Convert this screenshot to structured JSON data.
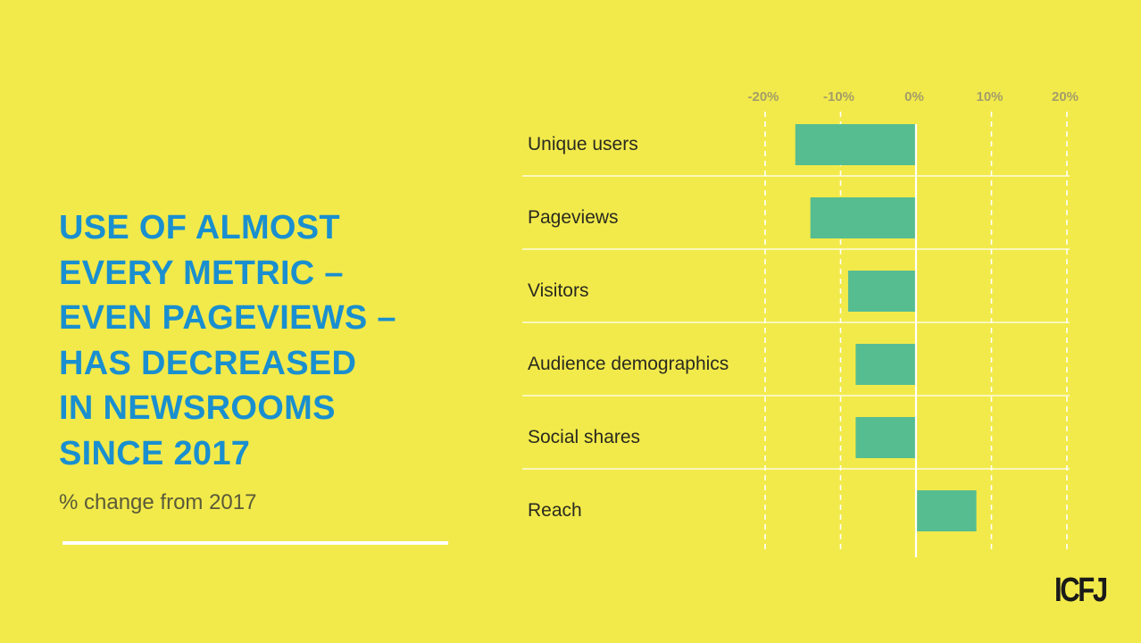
{
  "headline": {
    "lines": [
      "USE OF ALMOST",
      "EVERY METRIC –",
      "EVEN PAGEVIEWS –",
      "HAS DECREASED",
      "IN NEWSROOMS",
      "SINCE 2017"
    ]
  },
  "subtitle": "% change from 2017",
  "logo": "ICFJ",
  "colors": {
    "background": "#f2ea4a",
    "headline": "#1a8fcf",
    "bar": "#56bd91",
    "gridline": "#ffffff",
    "tick_label": "#a39d6a"
  },
  "chart_data": {
    "type": "bar",
    "orientation": "horizontal",
    "categories": [
      "Unique users",
      "Pageviews",
      "Visitors",
      "Audience demographics",
      "Social shares",
      "Reach"
    ],
    "values": [
      -16,
      -14,
      -9,
      -8,
      -8,
      8
    ],
    "x_ticks": [
      "-20%",
      "-10%",
      "0%",
      "10%",
      "20%"
    ],
    "x_tick_values": [
      -20,
      -10,
      0,
      10,
      20
    ],
    "xlim": [
      -20,
      20
    ],
    "grid": true,
    "xlabel": "",
    "ylabel": ""
  }
}
